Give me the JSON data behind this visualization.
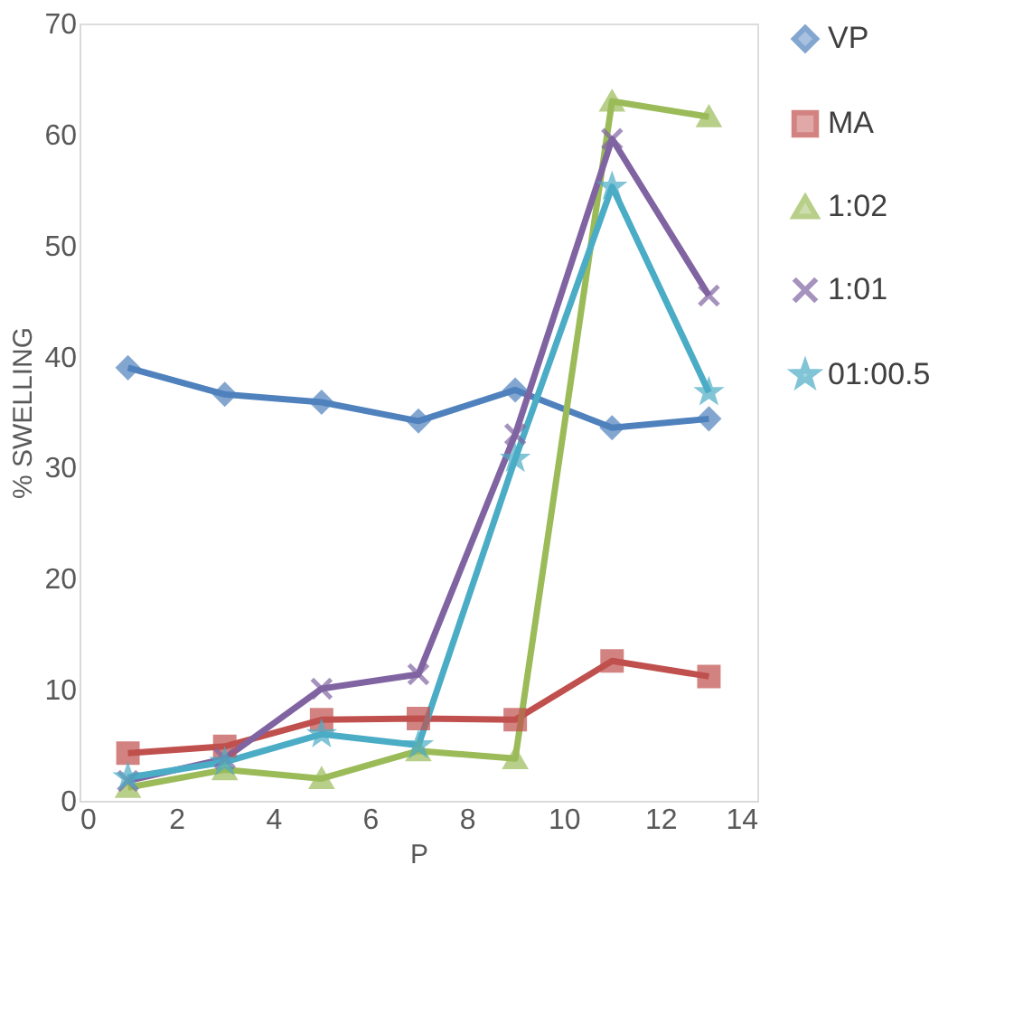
{
  "chart_data": {
    "type": "line",
    "xlabel": "P",
    "ylabel": "% SWELLING",
    "x": [
      1,
      3,
      5,
      7,
      9,
      11,
      13
    ],
    "series": [
      {
        "name": "VP",
        "color": "#4f81bd",
        "marker": "diamond",
        "values": [
          39,
          36.6,
          35.9,
          34.2,
          37,
          33.6,
          34.4
        ]
      },
      {
        "name": "MA",
        "color": "#c0504d",
        "marker": "square",
        "values": [
          4.3,
          4.9,
          7.3,
          7.4,
          7.3,
          12.6,
          11.2
        ]
      },
      {
        "name": "1:02",
        "color": "#9bbb59",
        "marker": "triangle",
        "values": [
          1.2,
          2.8,
          2.0,
          4.5,
          3.8,
          63,
          61.6
        ]
      },
      {
        "name": "1:01",
        "color": "#8064a2",
        "marker": "cross",
        "values": [
          1.8,
          3.8,
          10.1,
          11.4,
          33,
          59.6,
          45.5
        ]
      },
      {
        "name": "01:00.5",
        "color": "#4bacc6",
        "marker": "star",
        "values": [
          2.1,
          3.5,
          6.0,
          5.0,
          30.8,
          55.3,
          36.8
        ]
      }
    ],
    "xlim": [
      0,
      14
    ],
    "xticks": [
      0,
      2,
      4,
      6,
      8,
      10,
      12,
      14
    ],
    "ylim": [
      0,
      70
    ],
    "yticks": [
      0,
      10,
      20,
      30,
      40,
      50,
      60,
      70
    ],
    "grid": false,
    "legend": "right",
    "line_style": "solid"
  }
}
